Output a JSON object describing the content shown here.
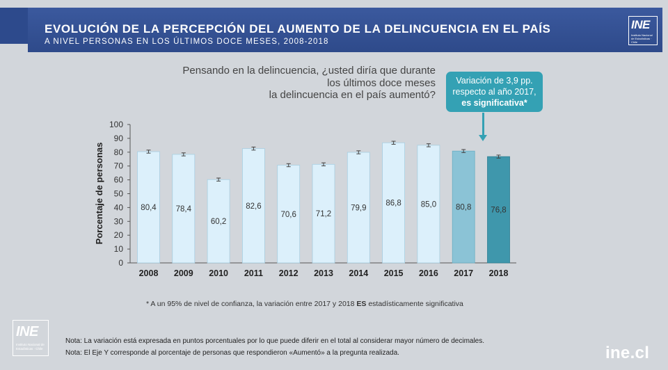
{
  "header": {
    "title": "EVOLUCIÓN DE LA PERCEPCIÓN DEL AUMENTO DE LA DELINCUENCIA EN EL PAÍS",
    "subtitle": "A NIVEL PERSONAS EN LOS ÚLTIMOS DOCE MESES, 2008-2018",
    "logo_text": "INE",
    "logo_small": "Instituto Nacional de Estadísticas · Chile"
  },
  "question": {
    "line1": "Pensando en la delincuencia, ¿usted diría que durante",
    "line2": "los últimos doce meses",
    "line3": "la delincuencia en el país aumentó?"
  },
  "callout": {
    "line1": "Variación de 3,9 pp.",
    "line2": "respecto al año 2017,",
    "line3": "es significativa*"
  },
  "footnote": {
    "prefix": "* A un 95% de nivel de confianza, la variación entre 2017 y 2018",
    "bold": "ES",
    "suffix": "estadísticamente significativa"
  },
  "notes": {
    "note1": "Nota: La variación está expresada en puntos porcentuales por lo que puede diferir en el total al considerar mayor número de decimales.",
    "note2": "Nota: El Eje Y corresponde  al porcentaje de personas que respondieron «Aumentó» a la pregunta realizada."
  },
  "bottom_logo": {
    "logo_text": "INE",
    "logo_small": "Instituto Nacional de Estadísticas · Chile"
  },
  "site": "ine.cl",
  "colors": {
    "background": "#d2d6db",
    "header": "#2e4a8a",
    "bar_default": "#dcf0fb",
    "bar_2017": "#8bc3d6",
    "bar_2018": "#3f97ac",
    "callout": "#34a1b4"
  },
  "chart_data": {
    "type": "bar",
    "categories": [
      "2008",
      "2009",
      "2010",
      "2011",
      "2012",
      "2013",
      "2014",
      "2015",
      "2016",
      "2017",
      "2018"
    ],
    "values": [
      80.4,
      78.4,
      60.2,
      82.6,
      70.6,
      71.2,
      79.9,
      86.8,
      85.0,
      80.8,
      76.8
    ],
    "value_labels": [
      "80,4",
      "78,4",
      "60,2",
      "82,6",
      "70,6",
      "71,2",
      "79,9",
      "86,8",
      "85,0",
      "80,8",
      "76,8"
    ],
    "error_bars": true,
    "ylabel": "Porcentaje de personas",
    "ylim": [
      0,
      100
    ],
    "yticks": [
      0,
      10,
      20,
      30,
      40,
      50,
      60,
      70,
      80,
      90,
      100
    ],
    "grid": false
  }
}
